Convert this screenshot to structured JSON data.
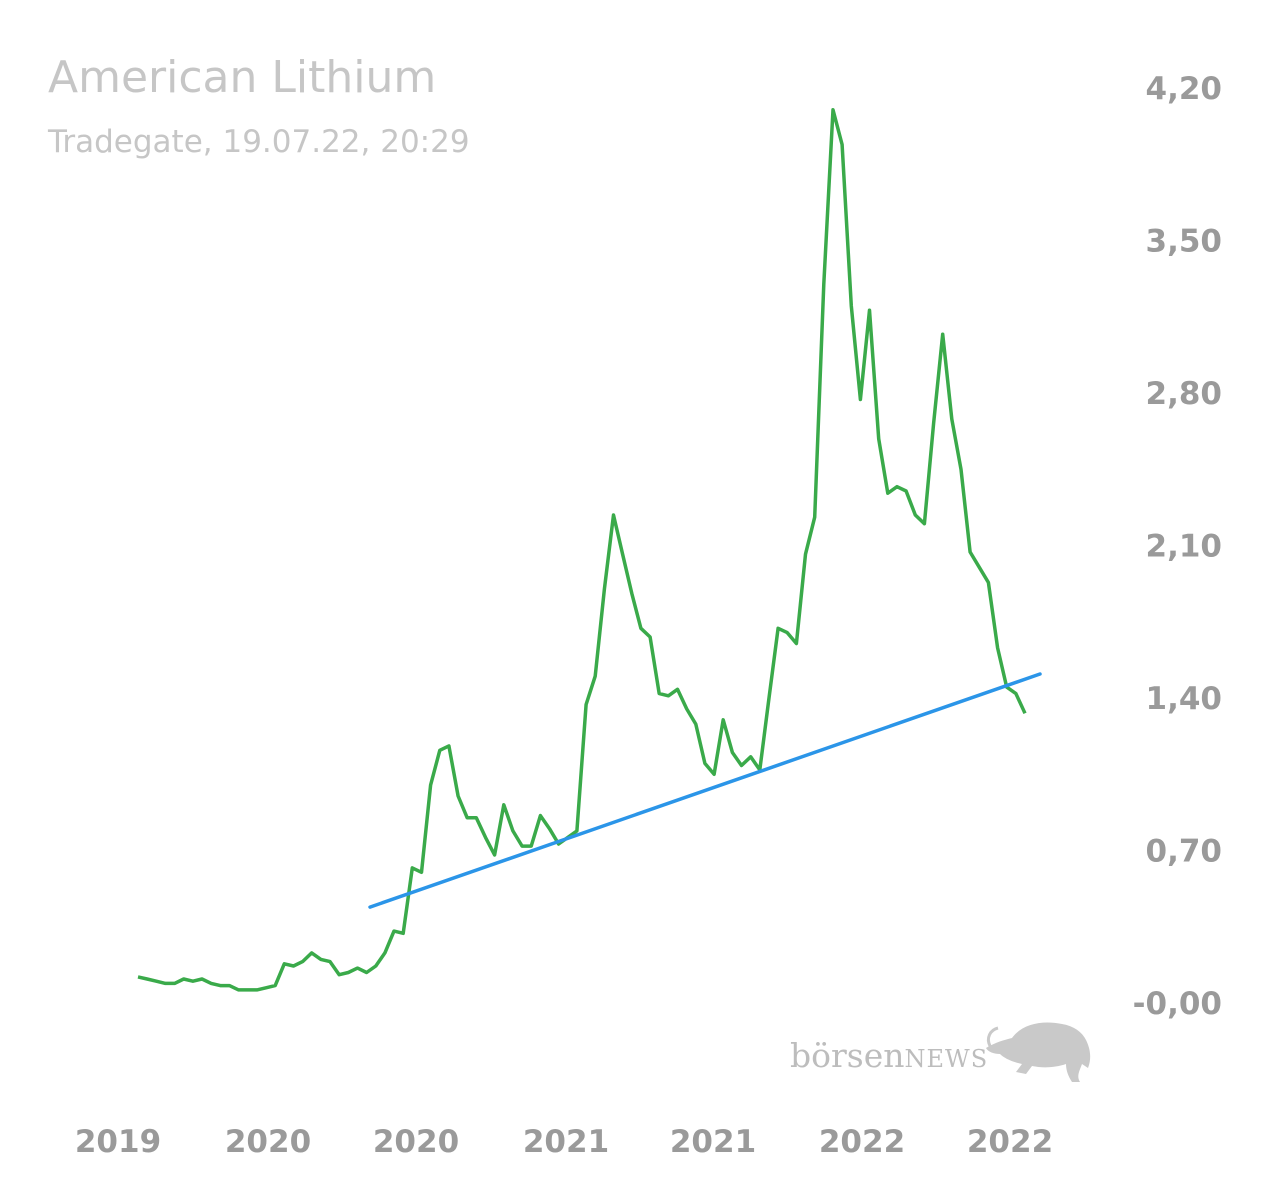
{
  "header": {
    "title": "American Lithium",
    "subtitle": "Tradegate, 19.07.22, 20:29"
  },
  "watermark": {
    "brand_prefix": "börsen",
    "brand_suffix": "NEWS",
    "icon": "bull-icon"
  },
  "colors": {
    "price_line": "#3aaa4a",
    "trend_line": "#2b95e8",
    "tick_text": "#9a9a9a",
    "title_text": "#c6c6c6"
  },
  "chart_data": {
    "type": "line",
    "title": "American Lithium",
    "subtitle": "Tradegate, 19.07.22, 20:29",
    "xlabel": "",
    "ylabel": "",
    "ylim": [
      -0.1,
      4.4
    ],
    "yticks": [
      4.2,
      3.5,
      2.8,
      2.1,
      1.4,
      0.7,
      0.0
    ],
    "ytick_labels": [
      "4,20",
      "3,50",
      "2,80",
      "2,10",
      "1,40",
      "0,70",
      "-0,00"
    ],
    "xtick_labels": [
      "2019",
      "2020",
      "2020",
      "2021",
      "2021",
      "2022",
      "2022"
    ],
    "grid": false,
    "legend": "none",
    "series": [
      {
        "values": [
          0.12,
          0.11,
          0.1,
          0.09,
          0.09,
          0.11,
          0.1,
          0.11,
          0.09,
          0.08,
          0.08,
          0.06,
          0.06,
          0.06,
          0.07,
          0.08,
          0.18,
          0.17,
          0.19,
          0.23,
          0.2,
          0.19,
          0.13,
          0.14,
          0.16,
          0.14,
          0.17,
          0.23,
          0.33,
          0.32,
          0.62,
          0.6,
          1.0,
          1.16,
          1.18,
          0.95,
          0.85,
          0.85,
          0.76,
          0.68,
          0.91,
          0.79,
          0.72,
          0.72,
          0.86,
          0.8,
          0.73,
          0.76,
          0.79,
          1.37,
          1.5,
          1.9,
          2.24,
          2.06,
          1.88,
          1.72,
          1.68,
          1.42,
          1.41,
          1.44,
          1.35,
          1.28,
          1.1,
          1.05,
          1.3,
          1.15,
          1.09,
          1.13,
          1.07,
          1.4,
          1.72,
          1.7,
          1.65,
          2.06,
          2.23,
          3.3,
          4.1,
          3.94,
          3.2,
          2.77,
          3.18,
          2.59,
          2.34,
          2.37,
          2.35,
          2.24,
          2.2,
          2.66,
          3.07,
          2.68,
          2.45,
          2.07,
          2.0,
          1.93,
          1.63,
          1.45,
          1.42,
          1.33
        ]
      },
      {
        "values": [
          0.44,
          1.51
        ]
      }
    ]
  }
}
